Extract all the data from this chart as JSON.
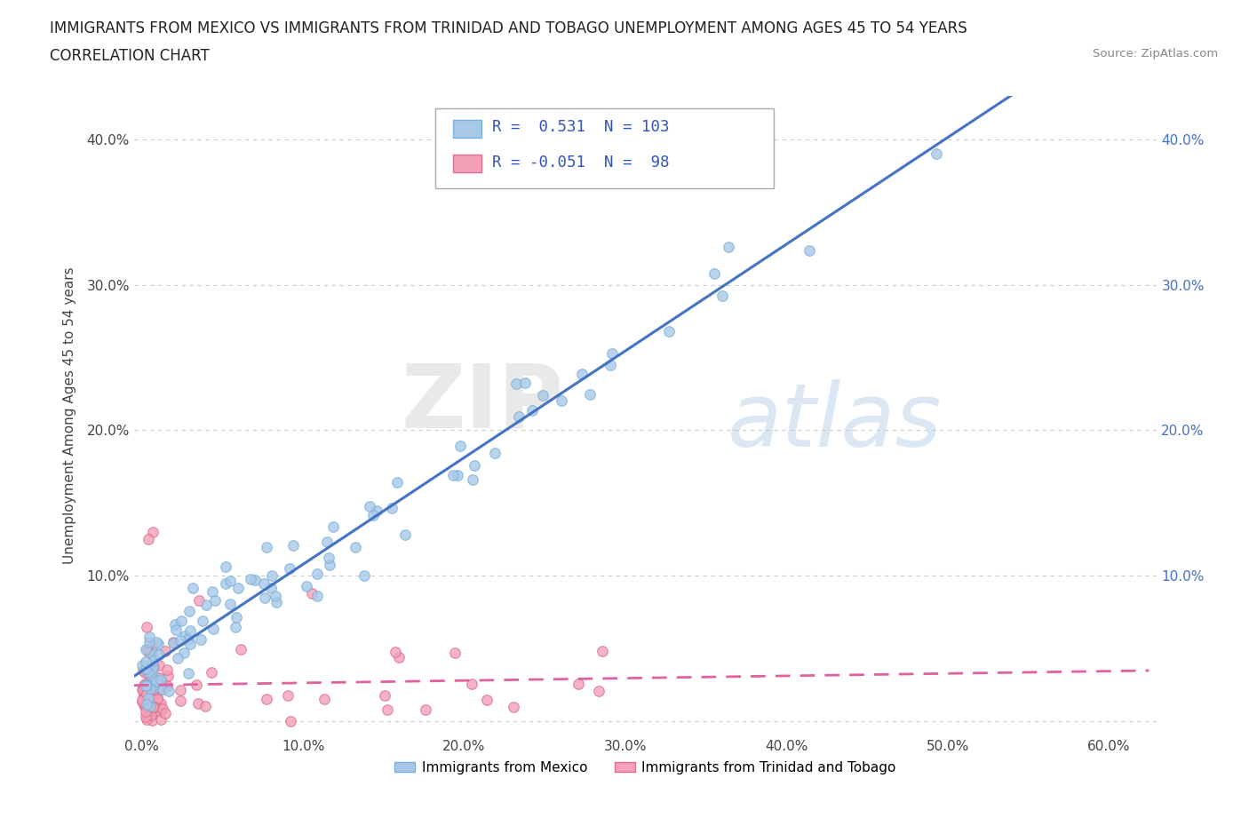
{
  "title_line1": "IMMIGRANTS FROM MEXICO VS IMMIGRANTS FROM TRINIDAD AND TOBAGO UNEMPLOYMENT AMONG AGES 45 TO 54 YEARS",
  "title_line2": "CORRELATION CHART",
  "source_text": "Source: ZipAtlas.com",
  "ylabel": "Unemployment Among Ages 45 to 54 years",
  "xlim": [
    -0.005,
    0.63
  ],
  "ylim": [
    -0.01,
    0.43
  ],
  "xticks": [
    0.0,
    0.1,
    0.2,
    0.3,
    0.4,
    0.5,
    0.6
  ],
  "xticklabels": [
    "0.0%",
    "10.0%",
    "20.0%",
    "30.0%",
    "40.0%",
    "50.0%",
    "60.0%"
  ],
  "yticks": [
    0.0,
    0.1,
    0.2,
    0.3,
    0.4
  ],
  "yticklabels": [
    "",
    "10.0%",
    "20.0%",
    "30.0%",
    "40.0%"
  ],
  "right_yticks": [
    0.1,
    0.2,
    0.3,
    0.4
  ],
  "right_yticklabels": [
    "10.0%",
    "20.0%",
    "30.0%",
    "40.0%"
  ],
  "mexico_color": "#a8c8e8",
  "mexico_edge_color": "#7ab0d8",
  "tt_color": "#f4a0b8",
  "tt_edge_color": "#d87090",
  "trend_mexico_color": "#4472c4",
  "trend_tt_color": "#e060a0",
  "R_mexico": 0.531,
  "N_mexico": 103,
  "R_tt": -0.051,
  "N_tt": 98,
  "legend_label_mexico": "Immigrants from Mexico",
  "legend_label_tt": "Immigrants from Trinidad and Tobago",
  "watermark_zip": "ZIP",
  "watermark_atlas": "atlas",
  "background_color": "#ffffff",
  "grid_color": "#cccccc",
  "marker_size": 70
}
